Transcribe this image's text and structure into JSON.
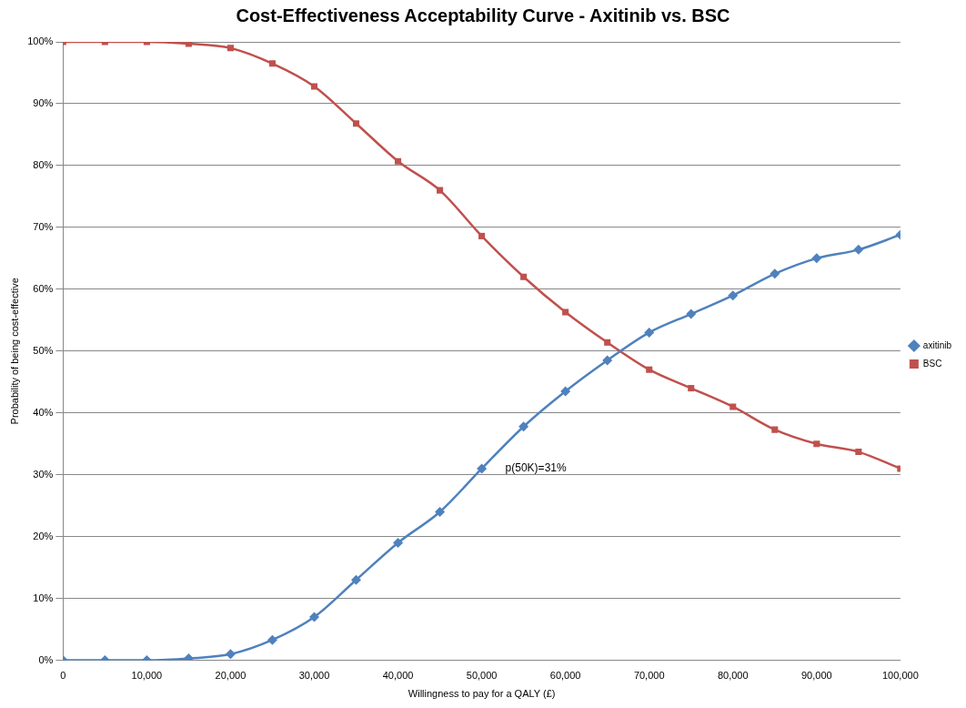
{
  "chart_data": {
    "type": "line",
    "title": "Cost-Effectiveness Acceptability Curve - Axitinib vs. BSC",
    "xlabel": "Willingness to pay for a QALY (£)",
    "ylabel": "Probability of being cost-effective",
    "x": [
      0,
      5000,
      10000,
      15000,
      20000,
      25000,
      30000,
      35000,
      40000,
      45000,
      50000,
      55000,
      60000,
      65000,
      70000,
      75000,
      80000,
      85000,
      90000,
      95000,
      100000
    ],
    "series": [
      {
        "name": "axitinib",
        "color": "#4f81bd",
        "marker": "diamond",
        "values": [
          0,
          0,
          0,
          0.3,
          1,
          3.3,
          7,
          13,
          19,
          24,
          31,
          37.8,
          43.5,
          48.5,
          53,
          56,
          59,
          62.5,
          65,
          66.4,
          68.8
        ]
      },
      {
        "name": "BSC",
        "color": "#c0504d",
        "marker": "square",
        "values": [
          100,
          100,
          100,
          99.7,
          99,
          96.5,
          92.8,
          86.8,
          80.7,
          76,
          68.6,
          62,
          56.3,
          51.4,
          47,
          44,
          41,
          37.3,
          35,
          33.7,
          31
        ]
      }
    ],
    "xlim": [
      0,
      100000
    ],
    "xticks": [
      0,
      {
        "value": 10000,
        "label": "10,000"
      },
      {
        "value": 20000,
        "label": "20,000"
      },
      {
        "value": 30000,
        "label": "30,000"
      },
      {
        "value": 40000,
        "label": "40,000"
      },
      {
        "value": 50000,
        "label": "50,000"
      },
      {
        "value": 60000,
        "label": "60,000"
      },
      {
        "value": 70000,
        "label": "70,000"
      },
      {
        "value": 80000,
        "label": "80,000"
      },
      {
        "value": 90000,
        "label": "90,000"
      },
      {
        "value": 100000,
        "label": "100,000"
      }
    ],
    "ylim": [
      0,
      100
    ],
    "yticks": [
      {
        "value": 0,
        "label": "0%"
      },
      {
        "value": 10,
        "label": "10%"
      },
      {
        "value": 20,
        "label": "20%"
      },
      {
        "value": 30,
        "label": "30%"
      },
      {
        "value": 40,
        "label": "40%"
      },
      {
        "value": 50,
        "label": "50%"
      },
      {
        "value": 60,
        "label": "60%"
      },
      {
        "value": 70,
        "label": "70%"
      },
      {
        "value": 80,
        "label": "80%"
      },
      {
        "value": 90,
        "label": "90%"
      },
      {
        "value": 100,
        "label": "100%"
      }
    ],
    "grid": "y",
    "legend": "right",
    "line_style": "solid",
    "annotations": [
      {
        "text": "p(50K)=31%",
        "x": 50000,
        "y": 31
      }
    ]
  }
}
